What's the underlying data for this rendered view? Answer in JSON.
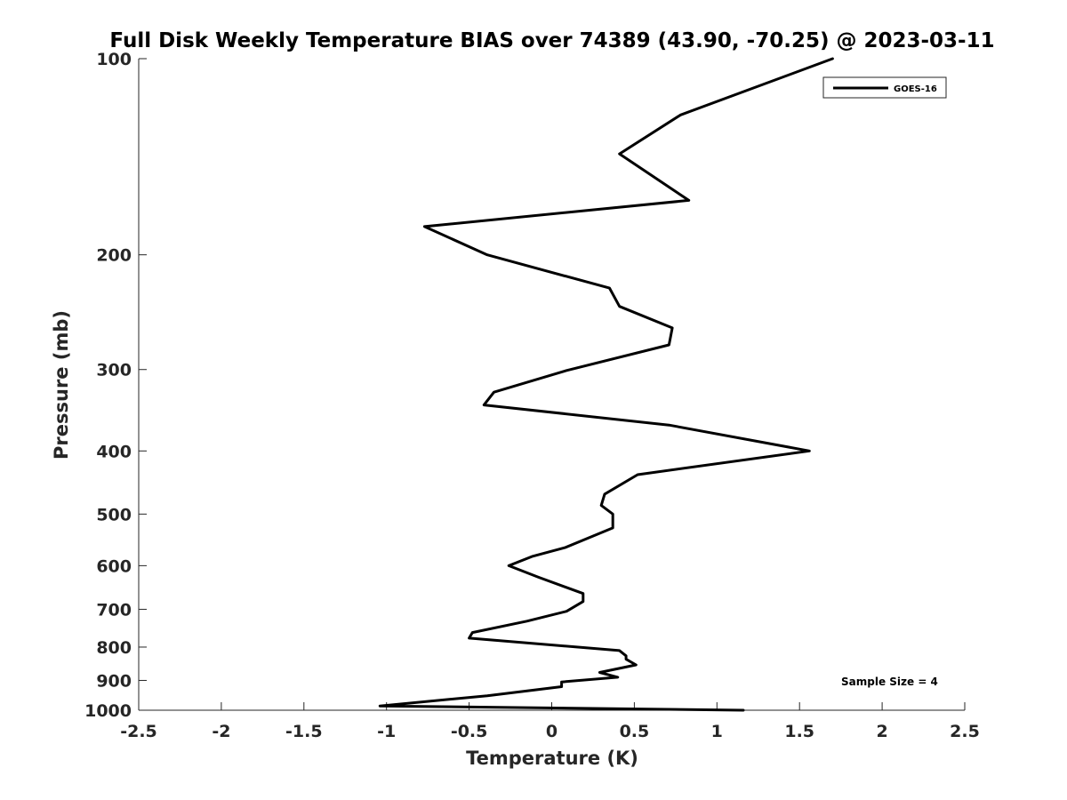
{
  "chart_data": {
    "type": "line",
    "title": "Full Disk Weekly Temperature BIAS over 74389 (43.90, -70.25) @ 2023-03-11",
    "xlabel": "Temperature (K)",
    "ylabel": "Pressure (mb)",
    "xlim": [
      -2.5,
      2.5
    ],
    "ylim": [
      100,
      1000
    ],
    "y_scale": "log",
    "y_reversed": true,
    "x_ticks": [
      -2.5,
      -2,
      -1.5,
      -1,
      -0.5,
      0,
      0.5,
      1,
      1.5,
      2,
      2.5
    ],
    "x_tick_labels": [
      "-2.5",
      "-2",
      "-1.5",
      "-1",
      "-0.5",
      "0",
      "0.5",
      "1",
      "1.5",
      "2",
      "2.5"
    ],
    "y_ticks": [
      100,
      200,
      300,
      400,
      500,
      600,
      700,
      800,
      900,
      1000
    ],
    "y_tick_labels": [
      "100",
      "200",
      "300",
      "400",
      "500",
      "600",
      "700",
      "800",
      "900",
      "1000"
    ],
    "grid": false,
    "legend_position": "top-right",
    "series": [
      {
        "name": "GOES-16",
        "color": "#000000",
        "x": [
          1.7,
          0.78,
          0.41,
          0.83,
          -0.77,
          -0.39,
          0.35,
          0.41,
          0.73,
          0.71,
          0.09,
          -0.35,
          -0.41,
          0.71,
          1.56,
          0.52,
          0.32,
          0.3,
          0.37,
          0.37,
          0.08,
          -0.12,
          -0.26,
          -0.08,
          0.19,
          0.19,
          0.09,
          -0.15,
          -0.48,
          -0.5,
          0.41,
          0.45,
          0.45,
          0.51,
          0.29,
          0.4,
          0.06,
          0.06,
          -0.39,
          -1.04,
          1.16
        ],
        "y": [
          100,
          122,
          140,
          165,
          181,
          200,
          225,
          240,
          259,
          275,
          301,
          325,
          340,
          365,
          400,
          435,
          466,
          485,
          500,
          525,
          563,
          581,
          600,
          625,
          662,
          681,
          705,
          730,
          760,
          775,
          810,
          825,
          835,
          852,
          875,
          890,
          905,
          920,
          950,
          985,
          1000
        ]
      }
    ],
    "annotations": [
      "Sample Size = 4"
    ]
  }
}
